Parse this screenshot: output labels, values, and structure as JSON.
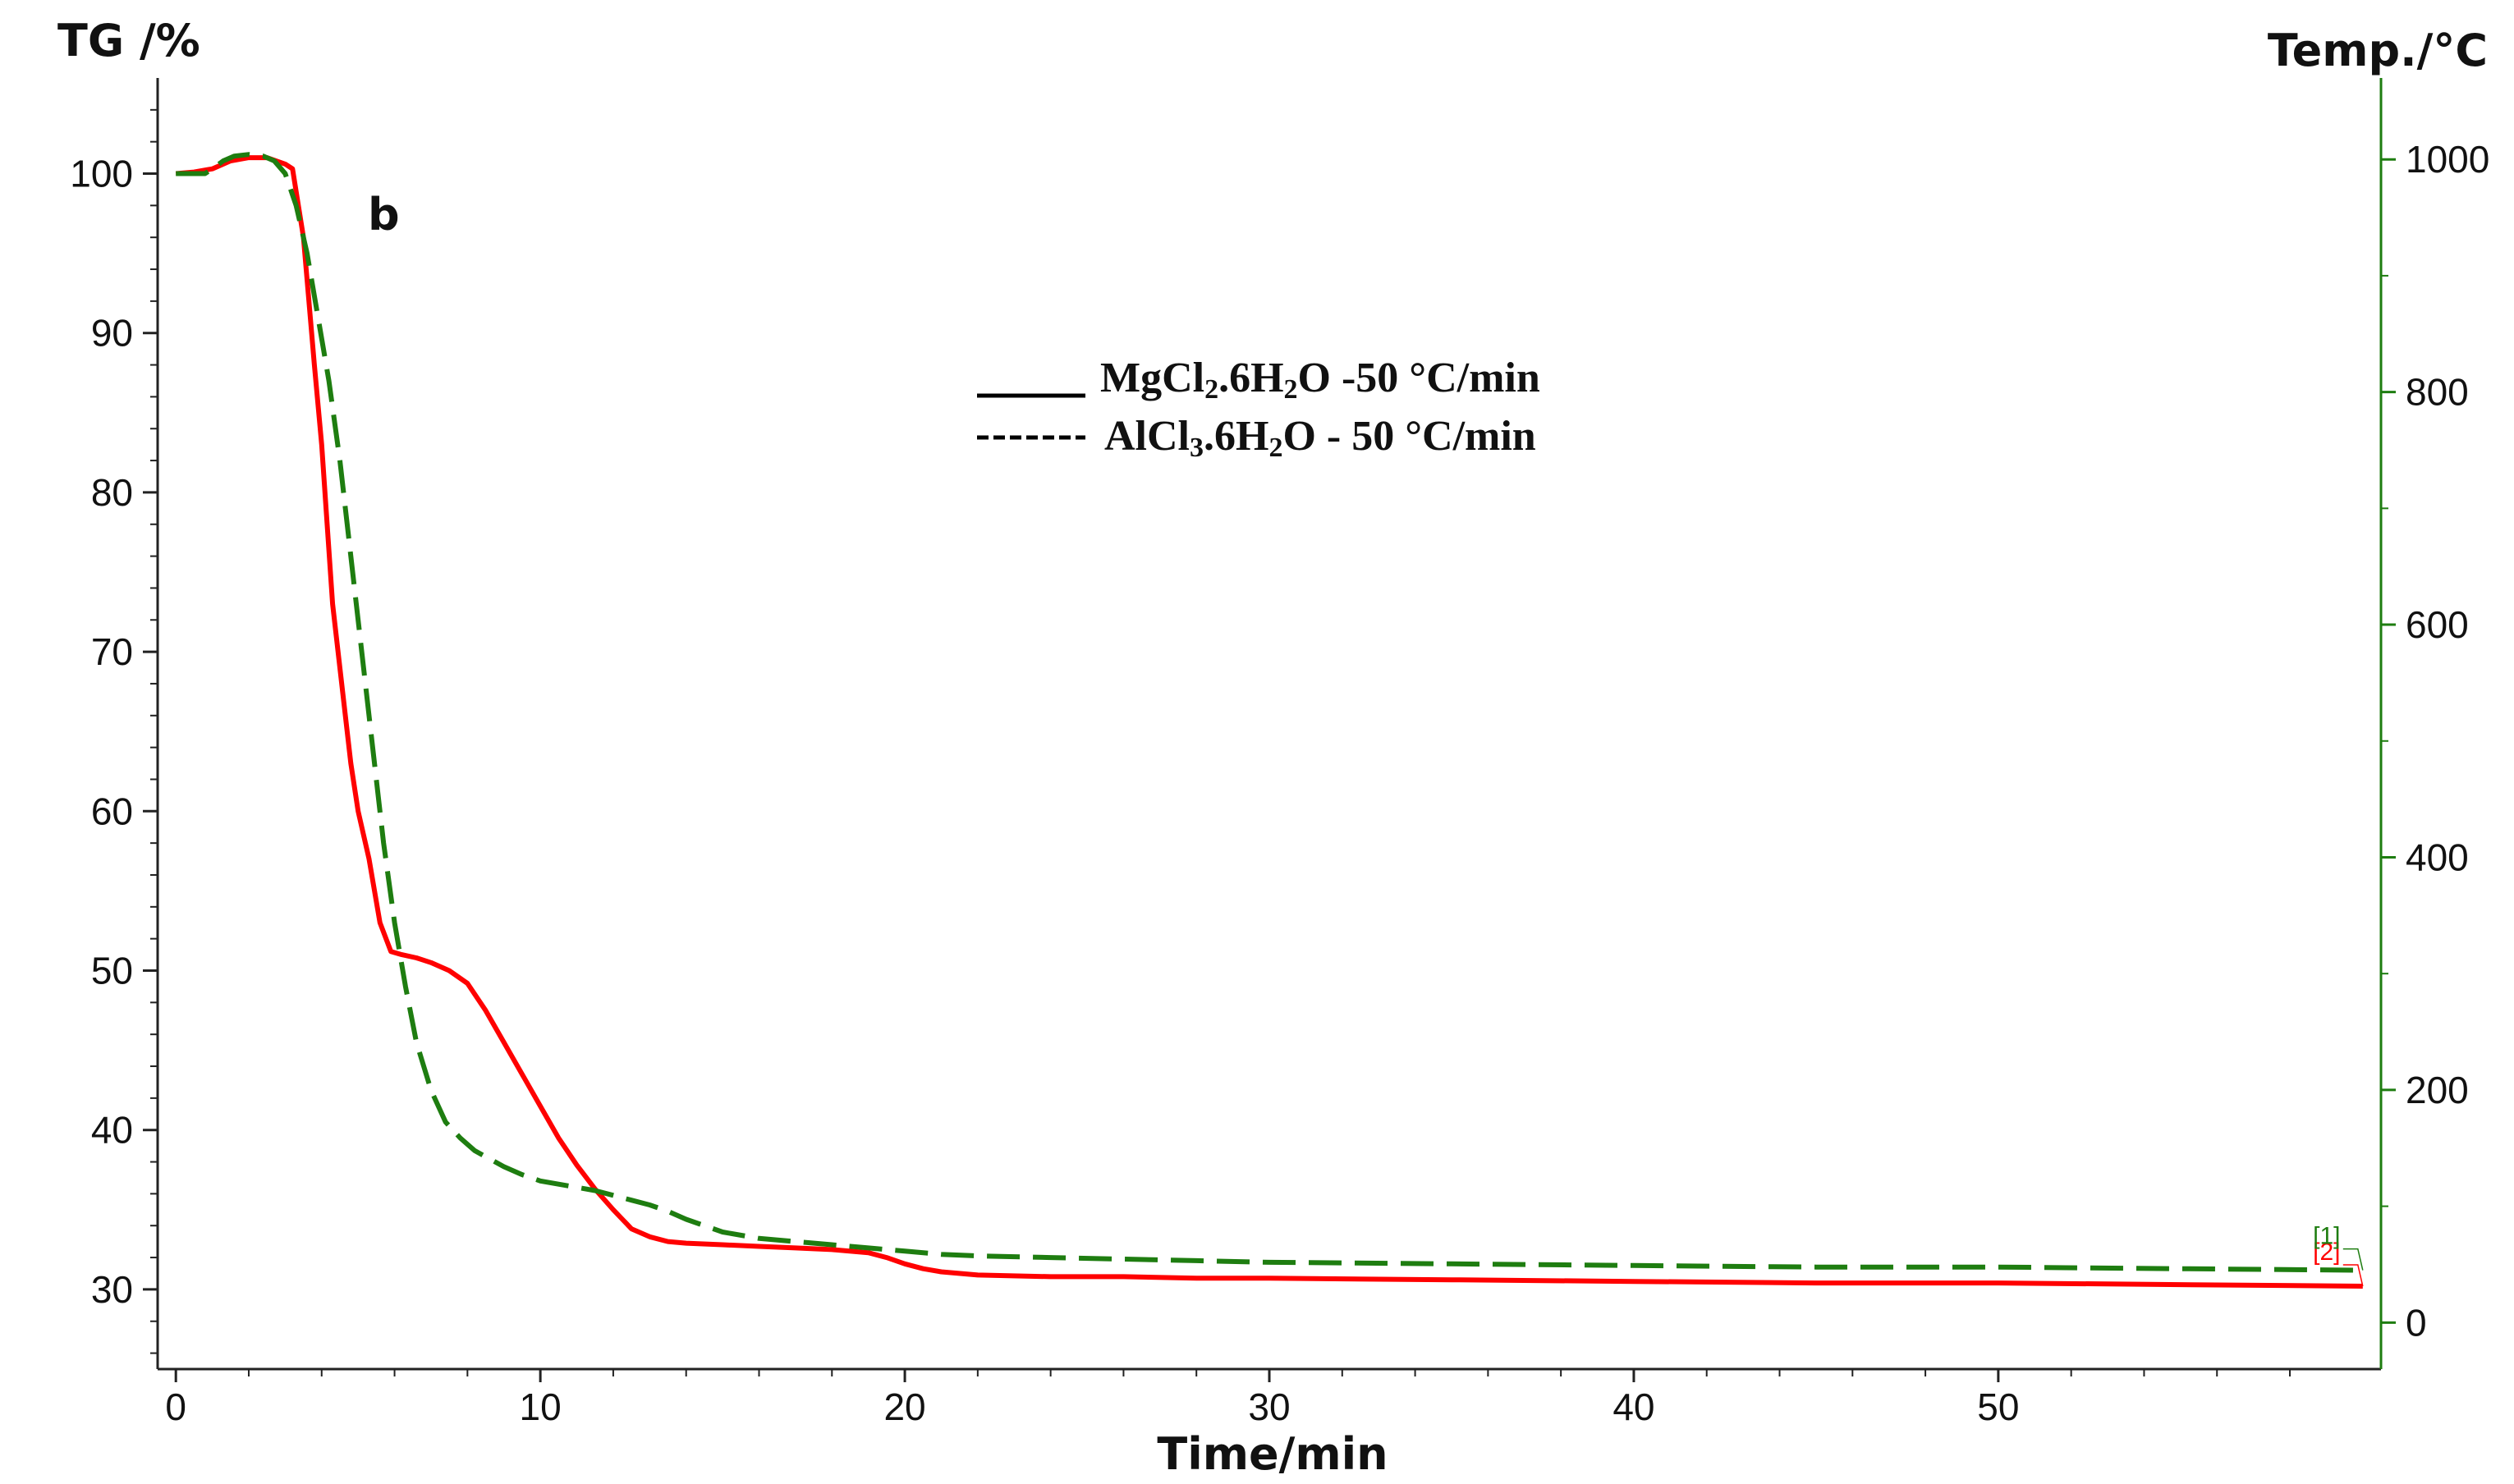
{
  "chart_data": {
    "type": "line",
    "panel_label": "b",
    "xlabel": "Time/min",
    "ylabel_left": "TG /%",
    "ylabel_right": "Temp./°C",
    "xlim": [
      -0.5,
      60.5
    ],
    "ylim_left": [
      25,
      106
    ],
    "ylim_right": [
      -40,
      1070
    ],
    "x_ticks": [
      0,
      10,
      20,
      30,
      40,
      50
    ],
    "y_left_ticks": [
      30,
      40,
      50,
      60,
      70,
      80,
      90,
      100
    ],
    "y_right_ticks": [
      0,
      200,
      400,
      600,
      800,
      1000
    ],
    "grid": false,
    "legend_position": "top-center",
    "legend": [
      {
        "sample": "MgCl",
        "sub1": "2",
        "mid": ".6H",
        "sub2": "2",
        "rest": "O -50 °C/min",
        "linestyle": "solid"
      },
      {
        "sample": "AlCl",
        "sub1": "3",
        "mid": ".6H",
        "sub2": "2",
        "rest": "O - 50 °C/min",
        "linestyle": "dashed"
      }
    ],
    "series": [
      {
        "tag": "[2]",
        "color": "#ff0000",
        "linestyle": "solid",
        "axis": "left",
        "x": [
          0,
          0.5,
          1.0,
          1.5,
          2.0,
          2.5,
          3.0,
          3.2,
          3.5,
          3.8,
          4.0,
          4.3,
          4.6,
          4.8,
          5.0,
          5.3,
          5.6,
          5.9,
          6.2,
          6.6,
          7.0,
          7.5,
          8.0,
          8.5,
          9.0,
          9.5,
          10.0,
          10.5,
          11.0,
          11.5,
          12.0,
          12.5,
          13.0,
          13.5,
          14.0,
          15.0,
          16.0,
          17.0,
          18.0,
          19.0,
          19.5,
          20.0,
          20.5,
          21.0,
          22.0,
          24.0,
          26.0,
          28.0,
          30.0,
          35.0,
          40.0,
          45.0,
          50.0,
          55.0,
          60.0
        ],
        "y": [
          100.0,
          100.1,
          100.3,
          100.8,
          101.0,
          101.0,
          100.6,
          100.3,
          96.0,
          88.0,
          83.0,
          73.0,
          67.0,
          63.0,
          60.0,
          57.0,
          53.0,
          51.2,
          51.0,
          50.8,
          50.5,
          50.0,
          49.2,
          47.5,
          45.5,
          43.5,
          41.5,
          39.5,
          37.8,
          36.3,
          35.0,
          33.8,
          33.3,
          33.0,
          32.9,
          32.8,
          32.7,
          32.6,
          32.5,
          32.3,
          32.0,
          31.6,
          31.3,
          31.1,
          30.9,
          30.8,
          30.8,
          30.7,
          30.7,
          30.6,
          30.5,
          30.4,
          30.4,
          30.3,
          30.2
        ]
      },
      {
        "tag": "[1]",
        "color": "#1e7d10",
        "linestyle": "dashed",
        "axis": "left",
        "x": [
          0,
          0.5,
          0.8,
          1.0,
          1.3,
          1.6,
          2.0,
          2.4,
          2.7,
          3.0,
          3.3,
          3.6,
          3.9,
          4.2,
          4.5,
          4.8,
          5.1,
          5.4,
          5.7,
          6.0,
          6.3,
          6.6,
          7.0,
          7.4,
          7.8,
          8.2,
          8.6,
          9.0,
          9.5,
          10.0,
          10.5,
          11.0,
          11.5,
          12.0,
          12.5,
          13.0,
          13.5,
          14.0,
          15.0,
          16.0,
          17.0,
          18.0,
          19.0,
          20.0,
          21.0,
          22.0,
          24.0,
          26.0,
          28.0,
          30.0,
          35.0,
          40.0,
          45.0,
          50.0,
          55.0,
          60.0
        ],
        "y": [
          100.0,
          100.0,
          100.0,
          100.3,
          100.8,
          101.1,
          101.2,
          101.1,
          100.8,
          100.0,
          98.0,
          95.0,
          91.0,
          87.0,
          82.0,
          76.0,
          70.0,
          64.0,
          58.0,
          53.0,
          49.0,
          45.5,
          42.5,
          40.5,
          39.5,
          38.7,
          38.2,
          37.7,
          37.2,
          36.8,
          36.6,
          36.4,
          36.2,
          35.9,
          35.6,
          35.3,
          34.9,
          34.4,
          33.6,
          33.2,
          33.0,
          32.8,
          32.6,
          32.4,
          32.2,
          32.1,
          32.0,
          31.9,
          31.8,
          31.7,
          31.6,
          31.5,
          31.4,
          31.4,
          31.3,
          31.2
        ]
      }
    ]
  }
}
